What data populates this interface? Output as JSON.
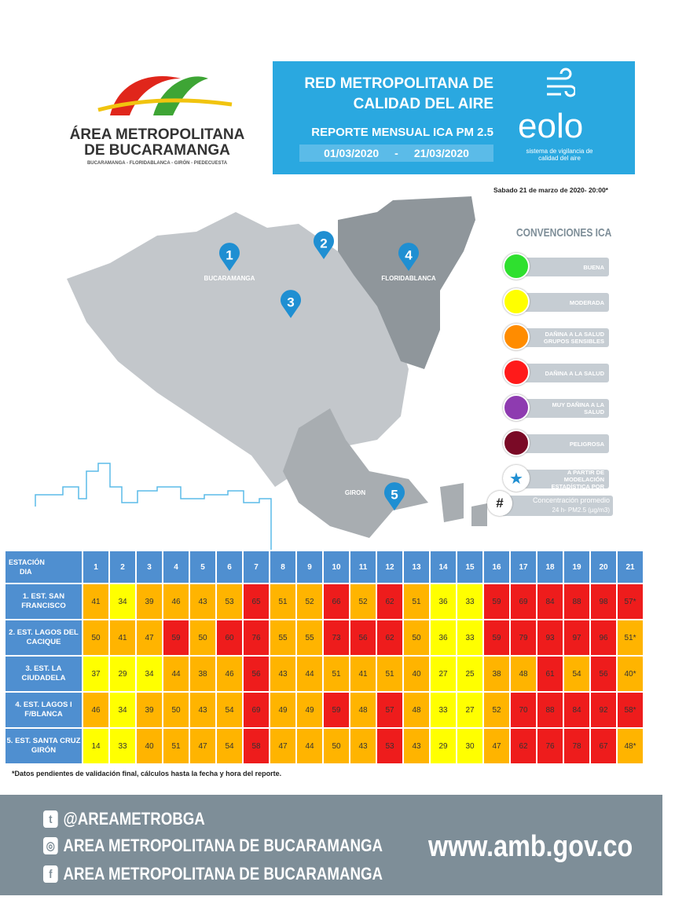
{
  "header": {
    "logo_line1": "ÁREA METROPOLITANA",
    "logo_line2": "DE BUCARAMANGA",
    "logo_subtitle": "BUCARAMANGA - FLORIDABLANCA - GIRÓN - PIEDECUESTA"
  },
  "banner": {
    "title_line1": "RED METROPOLITANA DE",
    "title_line2": "CALIDAD DEL AIRE",
    "subtitle": "REPORTE MENSUAL ICA PM 2.5",
    "date_from": "01/03/2020",
    "date_separator": "-",
    "date_to": "21/03/2020",
    "brand": "eolo",
    "brand_tagline_line1": "sistema de vigilancia de",
    "brand_tagline_line2": "calidad del aire"
  },
  "timestamp": "Sabado 21 de marzo de 2020- 20:00*",
  "map": {
    "markers": [
      {
        "number": "1",
        "label": "BUCARAMANGA"
      },
      {
        "number": "2"
      },
      {
        "number": "3"
      },
      {
        "number": "4",
        "label": "FLORIDABLANCA"
      },
      {
        "number": "5",
        "label": "GIRON"
      }
    ]
  },
  "legend": {
    "title": "CONVENCIONES ICA",
    "items": [
      {
        "label": "BUENA",
        "color": "#2fe02f"
      },
      {
        "label": "MODERADA",
        "color": "#ffff00"
      },
      {
        "label": "DAÑINA A LA SALUD GRUPOS SENSIBLES",
        "color": "#ff8c00"
      },
      {
        "label": "DAÑINA A LA SALUD",
        "color": "#ff1a1a"
      },
      {
        "label": "MUY DAÑINA A LA SALUD",
        "color": "#8e3bb0"
      },
      {
        "label": "PELIGROSA",
        "color": "#7a0a26"
      }
    ],
    "estimated": {
      "label": "DATOS ESTIMADOS A PARTIR DE MODELACIÓN ESTADÍSTICA POR PROMEDIO"
    },
    "concentration": {
      "symbol": "#",
      "line1": "Concentración promedio",
      "line2": "24 h- PM2.5 (µg/m3)"
    }
  },
  "table": {
    "header": {
      "station": "ESTACIÓN",
      "day": "DIA",
      "days": [
        1,
        2,
        3,
        4,
        5,
        6,
        7,
        8,
        9,
        10,
        11,
        12,
        13,
        14,
        15,
        16,
        17,
        18,
        19,
        20,
        21
      ]
    },
    "rows": [
      {
        "station": "1. EST. SAN FRANCISCO",
        "values": [
          41,
          34,
          39,
          46,
          43,
          53,
          65,
          51,
          52,
          66,
          52,
          62,
          51,
          36,
          33,
          59,
          69,
          84,
          88,
          98,
          "57*"
        ],
        "colors": [
          "#ffb400",
          "#ffff00",
          "#ffb400",
          "#ffb400",
          "#ffb400",
          "#ffb400",
          "#ee1c1c",
          "#ffb400",
          "#ffb400",
          "#ee1c1c",
          "#ffb400",
          "#ee1c1c",
          "#ffb400",
          "#ffff00",
          "#ffff00",
          "#ee1c1c",
          "#ee1c1c",
          "#ee1c1c",
          "#ee1c1c",
          "#ee1c1c",
          "#ee1c1c"
        ]
      },
      {
        "station": "2. EST. LAGOS DEL CACIQUE",
        "values": [
          50,
          41,
          47,
          59,
          50,
          60,
          76,
          55,
          55,
          73,
          56,
          62,
          50,
          36,
          33,
          59,
          79,
          93,
          97,
          96,
          "51*"
        ],
        "colors": [
          "#ffb400",
          "#ffb400",
          "#ffb400",
          "#ee1c1c",
          "#ffb400",
          "#ee1c1c",
          "#ee1c1c",
          "#ffb400",
          "#ffb400",
          "#ee1c1c",
          "#ee1c1c",
          "#ee1c1c",
          "#ffb400",
          "#ffff00",
          "#ffff00",
          "#ee1c1c",
          "#ee1c1c",
          "#ee1c1c",
          "#ee1c1c",
          "#ee1c1c",
          "#ffb400"
        ]
      },
      {
        "station": "3. EST. LA CIUDADELA",
        "values": [
          37,
          29,
          34,
          44,
          38,
          46,
          56,
          43,
          44,
          51,
          41,
          51,
          40,
          27,
          25,
          38,
          48,
          61,
          54,
          56,
          "40*"
        ],
        "colors": [
          "#ffff00",
          "#ffff00",
          "#ffff00",
          "#ffb400",
          "#ffb400",
          "#ffb400",
          "#ee1c1c",
          "#ffb400",
          "#ffb400",
          "#ffb400",
          "#ffb400",
          "#ffb400",
          "#ffb400",
          "#ffff00",
          "#ffff00",
          "#ffb400",
          "#ffb400",
          "#ee1c1c",
          "#ffb400",
          "#ee1c1c",
          "#ffb400"
        ]
      },
      {
        "station": "4. EST. LAGOS I F/BLANCA",
        "values": [
          46,
          34,
          39,
          50,
          43,
          54,
          69,
          49,
          49,
          59,
          48,
          57,
          48,
          33,
          27,
          52,
          70,
          88,
          84,
          92,
          "58*"
        ],
        "colors": [
          "#ffb400",
          "#ffff00",
          "#ffb400",
          "#ffb400",
          "#ffb400",
          "#ffb400",
          "#ee1c1c",
          "#ffb400",
          "#ffb400",
          "#ee1c1c",
          "#ffb400",
          "#ee1c1c",
          "#ffb400",
          "#ffff00",
          "#ffff00",
          "#ffb400",
          "#ee1c1c",
          "#ee1c1c",
          "#ee1c1c",
          "#ee1c1c",
          "#ee1c1c"
        ]
      },
      {
        "station": "5. EST. SANTA CRUZ GIRÓN",
        "values": [
          14,
          33,
          40,
          51,
          47,
          54,
          58,
          47,
          44,
          50,
          43,
          53,
          43,
          29,
          30,
          47,
          62,
          76,
          78,
          67,
          "48*"
        ],
        "colors": [
          "#ffff00",
          "#ffff00",
          "#ffb400",
          "#ffb400",
          "#ffb400",
          "#ffb400",
          "#ee1c1c",
          "#ffb400",
          "#ffb400",
          "#ffb400",
          "#ffb400",
          "#ee1c1c",
          "#ffb400",
          "#ffff00",
          "#ffff00",
          "#ffb400",
          "#ee1c1c",
          "#ee1c1c",
          "#ee1c1c",
          "#ee1c1c",
          "#ffb400"
        ]
      }
    ]
  },
  "footnote": "*Datos  pendientes de validación final,  cálculos hasta la fecha y hora del reporte.",
  "footer": {
    "twitter": "@AREAMETROBGA",
    "instagram": "AREA METROPOLITANA DE BUCARAMANGA",
    "facebook": "AREA METROPOLITANA DE BUCARAMANGA",
    "url": "www.amb.gov.co"
  }
}
